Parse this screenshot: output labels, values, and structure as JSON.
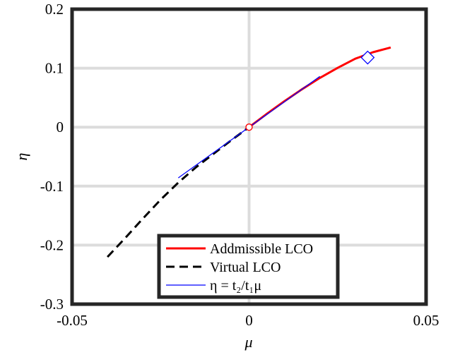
{
  "chart_data": {
    "type": "line",
    "xlabel": "μ",
    "ylabel": "η",
    "xlim": [
      -0.05,
      0.05
    ],
    "ylim": [
      -0.3,
      0.2
    ],
    "xticks": [
      -0.05,
      0,
      0.05
    ],
    "yticks": [
      -0.3,
      -0.2,
      -0.1,
      0,
      0.1,
      0.2
    ],
    "xtick_labels": [
      "-0.05",
      "0",
      "0.05"
    ],
    "ytick_labels": [
      "-0.3",
      "-0.2",
      "-0.1",
      "0",
      "0.1",
      "0.2"
    ],
    "grid": true,
    "legend_position": "bottom-center",
    "series": [
      {
        "name": "Addmissible LCO",
        "color": "#ff0000",
        "style": "solid",
        "x": [
          0,
          0.005,
          0.01,
          0.015,
          0.02,
          0.025,
          0.03,
          0.035,
          0.04
        ],
        "y": [
          0,
          0.0225,
          0.044,
          0.0645,
          0.0835,
          0.1005,
          0.116,
          0.127,
          0.135
        ]
      },
      {
        "name": "Virtual LCO",
        "color": "#000000",
        "style": "dashed",
        "x": [
          -0.04,
          -0.035,
          -0.03,
          -0.025,
          -0.02,
          -0.015,
          -0.01,
          -0.005,
          0
        ],
        "y": [
          -0.22,
          -0.188,
          -0.155,
          -0.123,
          -0.094,
          -0.068,
          -0.045,
          -0.022,
          0
        ]
      },
      {
        "name": "η = t₂/t₁μ",
        "color": "#0000ff",
        "style": "solid-thin",
        "x": [
          -0.02,
          0.02
        ],
        "y": [
          -0.086,
          0.086
        ]
      }
    ],
    "markers": [
      {
        "shape": "circle",
        "color": "#ff0000",
        "x": 0,
        "y": 0
      },
      {
        "shape": "diamond",
        "color": "#0000ff",
        "x": 0.0335,
        "y": 0.118
      }
    ],
    "legend": {
      "entries": [
        "Addmissible LCO",
        "Virtual LCO",
        "η = t₂/t₁μ"
      ]
    }
  }
}
